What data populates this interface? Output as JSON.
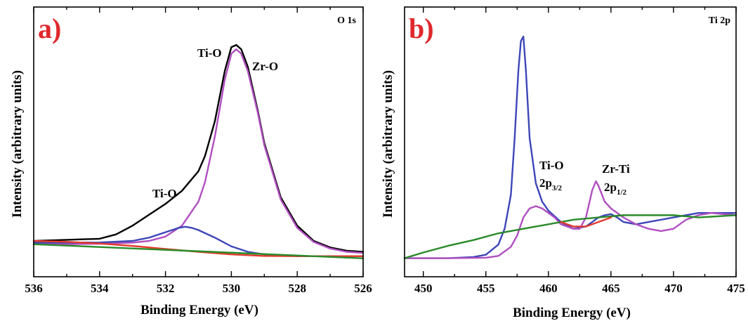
{
  "chart_data": [
    {
      "type": "line",
      "panel_label": "a)",
      "title": "O 1s",
      "xlabel": "Binding Energy (eV)",
      "ylabel": "Intensity (arbitrary units)",
      "xlim": [
        536,
        526
      ],
      "x_reversed": true,
      "ylim": [
        0,
        1.0
      ],
      "y_ticks_labeled": false,
      "xticks": [
        536,
        534,
        532,
        530,
        528,
        526
      ],
      "grid": false,
      "annotations": [
        {
          "text": "Ti-O",
          "x": 530.6,
          "y": 0.97
        },
        {
          "text": "Zr-O",
          "x": 529.0,
          "y": 0.9
        },
        {
          "text": "Ti-O",
          "x": 532.2,
          "y": 0.32
        }
      ],
      "series": [
        {
          "color": "#000000",
          "x": [
            536,
            535,
            534,
            533.5,
            533,
            532.5,
            532,
            531.5,
            531,
            530.8,
            530.5,
            530.2,
            530,
            529.85,
            529.7,
            529.5,
            529.2,
            529,
            528.5,
            528,
            527.5,
            527,
            526.5,
            526
          ],
          "y": [
            0.1,
            0.105,
            0.11,
            0.13,
            0.17,
            0.22,
            0.27,
            0.33,
            0.42,
            0.49,
            0.65,
            0.88,
            0.99,
            1.0,
            0.98,
            0.9,
            0.7,
            0.55,
            0.3,
            0.17,
            0.1,
            0.07,
            0.055,
            0.05
          ]
        },
        {
          "color": "#b04fc0",
          "x": [
            536,
            535,
            534,
            533,
            532.5,
            532,
            531.5,
            531,
            530.8,
            530.5,
            530.2,
            530,
            529.85,
            529.7,
            529.5,
            529.2,
            529,
            528.5,
            528,
            527.5,
            527,
            526.5,
            526
          ],
          "y": [
            0.085,
            0.085,
            0.087,
            0.092,
            0.1,
            0.12,
            0.17,
            0.28,
            0.37,
            0.58,
            0.84,
            0.96,
            0.98,
            0.96,
            0.88,
            0.69,
            0.54,
            0.29,
            0.16,
            0.095,
            0.065,
            0.05,
            0.045
          ]
        },
        {
          "color": "#3d46b8",
          "x": [
            536,
            535,
            534,
            533,
            532.5,
            532,
            531.6,
            531.4,
            531.2,
            531,
            530.5,
            530,
            529.5,
            529,
            528.5,
            528,
            527,
            526
          ],
          "y": [
            0.092,
            0.092,
            0.093,
            0.1,
            0.115,
            0.14,
            0.16,
            0.165,
            0.16,
            0.15,
            0.115,
            0.075,
            0.05,
            0.038,
            0.033,
            0.03,
            0.03,
            0.03
          ]
        },
        {
          "color": "#e23b2e",
          "x": [
            536,
            535,
            534,
            533,
            532,
            531,
            530,
            529,
            528,
            527,
            526
          ],
          "y": [
            0.1,
            0.096,
            0.088,
            0.077,
            0.063,
            0.05,
            0.038,
            0.031,
            0.03,
            0.03,
            0.03
          ]
        },
        {
          "color": "#2a8a2a",
          "x": [
            536,
            526
          ],
          "y": [
            0.085,
            0.02
          ]
        }
      ]
    },
    {
      "type": "line",
      "panel_label": "b)",
      "title": "Ti 2p",
      "xlabel": "Binding Energy (eV)",
      "ylabel": "Intensity (arbitrary units)",
      "xlim": [
        448.5,
        475
      ],
      "ylim": [
        0,
        1.0
      ],
      "y_ticks_labeled": false,
      "xticks": [
        450,
        455,
        460,
        465,
        470,
        475
      ],
      "grid": false,
      "annotations": [
        {
          "text": "Ti-O",
          "x": 460.6,
          "y": 0.43
        },
        {
          "text": "2p",
          "sub": "3/2",
          "x": 460.6,
          "y": 0.35
        },
        {
          "text": "Zr-Ti",
          "x": 466.3,
          "y": 0.4
        },
        {
          "text": "2p",
          "sub": "1/2",
          "x": 466.3,
          "y": 0.32
        }
      ],
      "series": [
        {
          "color": "#3d46b8",
          "x": [
            448.5,
            452,
            454,
            455,
            456,
            456.5,
            457,
            457.3,
            457.6,
            457.8,
            458,
            458.2,
            458.5,
            459,
            459.5,
            460,
            461,
            462,
            463,
            463.5,
            464,
            464.5,
            465,
            465.5,
            466,
            467,
            468,
            470,
            472,
            475
          ],
          "y": [
            0.02,
            0.02,
            0.025,
            0.035,
            0.08,
            0.15,
            0.3,
            0.55,
            0.85,
            0.98,
            1.0,
            0.85,
            0.55,
            0.35,
            0.27,
            0.23,
            0.18,
            0.15,
            0.16,
            0.18,
            0.2,
            0.21,
            0.215,
            0.2,
            0.18,
            0.17,
            0.18,
            0.2,
            0.22,
            0.22
          ]
        },
        {
          "color": "#b04fc0",
          "x": [
            448.5,
            452,
            455,
            456,
            457,
            457.5,
            458,
            458.5,
            459,
            459.5,
            460,
            460.5,
            461,
            462,
            462.5,
            463,
            463.5,
            463.8,
            464,
            464.5,
            465,
            465.5,
            466,
            467,
            468,
            469,
            470,
            471,
            472,
            473,
            475
          ],
          "y": [
            0.02,
            0.02,
            0.022,
            0.03,
            0.07,
            0.12,
            0.2,
            0.24,
            0.25,
            0.24,
            0.22,
            0.2,
            0.17,
            0.15,
            0.15,
            0.2,
            0.32,
            0.36,
            0.34,
            0.27,
            0.24,
            0.22,
            0.2,
            0.17,
            0.15,
            0.14,
            0.15,
            0.19,
            0.21,
            0.22,
            0.21
          ]
        },
        {
          "color": "#2a8a2a",
          "x": [
            448.5,
            450,
            452,
            454,
            456,
            458,
            460,
            462,
            464,
            466,
            468,
            470,
            472,
            475
          ],
          "y": [
            0.02,
            0.045,
            0.075,
            0.1,
            0.13,
            0.15,
            0.17,
            0.19,
            0.2,
            0.21,
            0.21,
            0.21,
            0.2,
            0.21
          ]
        },
        {
          "color": "#e23b2e",
          "x": [
            461,
            462,
            463,
            464,
            465
          ],
          "y": [
            0.18,
            0.16,
            0.16,
            0.18,
            0.2
          ]
        }
      ]
    }
  ]
}
